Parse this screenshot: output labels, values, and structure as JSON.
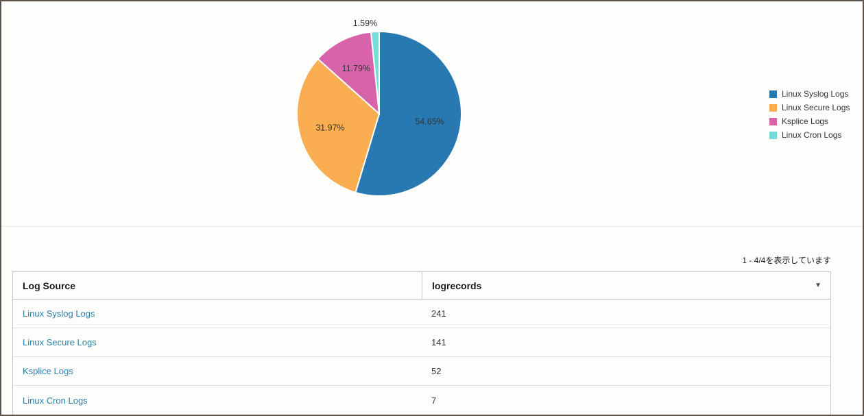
{
  "chart_data": {
    "type": "pie",
    "labels": [
      "Linux Syslog Logs",
      "Linux Secure Logs",
      "Ksplice Logs",
      "Linux Cron Logs"
    ],
    "values": [
      241,
      141,
      52,
      7
    ],
    "percents": [
      54.65,
      31.97,
      11.79,
      1.59
    ],
    "percent_labels": [
      "54.65%",
      "31.97%",
      "11.79%",
      "1.59%"
    ],
    "colors": [
      "#2878b1",
      "#fbad52",
      "#d763ab",
      "#75dcda"
    ],
    "legend_position": "right",
    "start_angle_deg": 0,
    "direction": "clockwise",
    "slice_border_color": "#ffffff",
    "label_color": "#333333"
  },
  "table": {
    "pagination_text": "1 - 4/4を表示しています",
    "columns": [
      {
        "label": "Log Source"
      },
      {
        "label": "logrecords",
        "sort_icon": "▼"
      }
    ],
    "rows": [
      {
        "log_source": "Linux Syslog Logs",
        "logrecords": "241"
      },
      {
        "log_source": "Linux Secure Logs",
        "logrecords": "141"
      },
      {
        "log_source": "Ksplice Logs",
        "logrecords": "52"
      },
      {
        "log_source": "Linux Cron Logs",
        "logrecords": "7"
      }
    ]
  }
}
